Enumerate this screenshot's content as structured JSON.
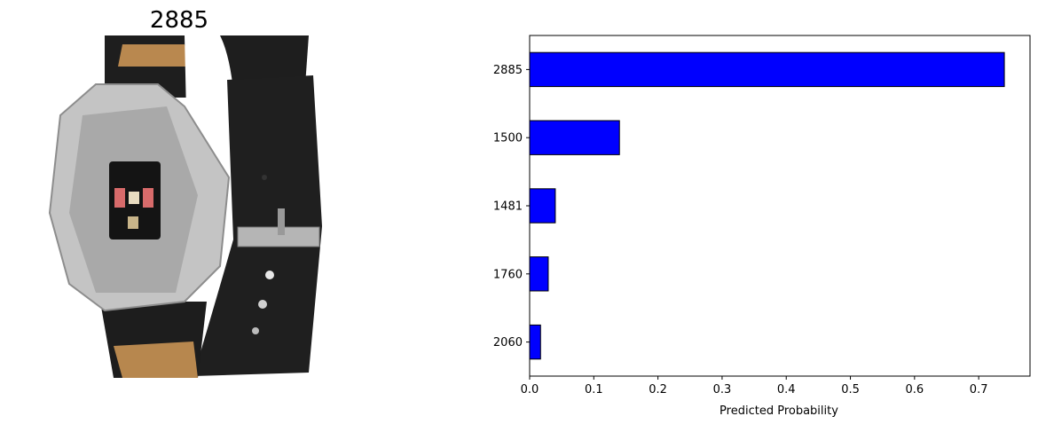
{
  "image_panel": {
    "title": "2885",
    "subject": "smartwatch-photo"
  },
  "chart_data": {
    "type": "bar",
    "orientation": "horizontal",
    "categories": [
      "2885",
      "1500",
      "1481",
      "1760",
      "2060"
    ],
    "values": [
      0.74,
      0.14,
      0.04,
      0.029,
      0.017
    ],
    "xlabel": "Predicted Probability",
    "ylabel": "",
    "xlim": [
      0,
      0.78
    ],
    "xticks": [
      "0.0",
      "0.1",
      "0.2",
      "0.3",
      "0.4",
      "0.5",
      "0.6",
      "0.7"
    ],
    "bar_color": "#0000ff",
    "edge_color": "#000000",
    "grid": false,
    "legend": "none"
  }
}
